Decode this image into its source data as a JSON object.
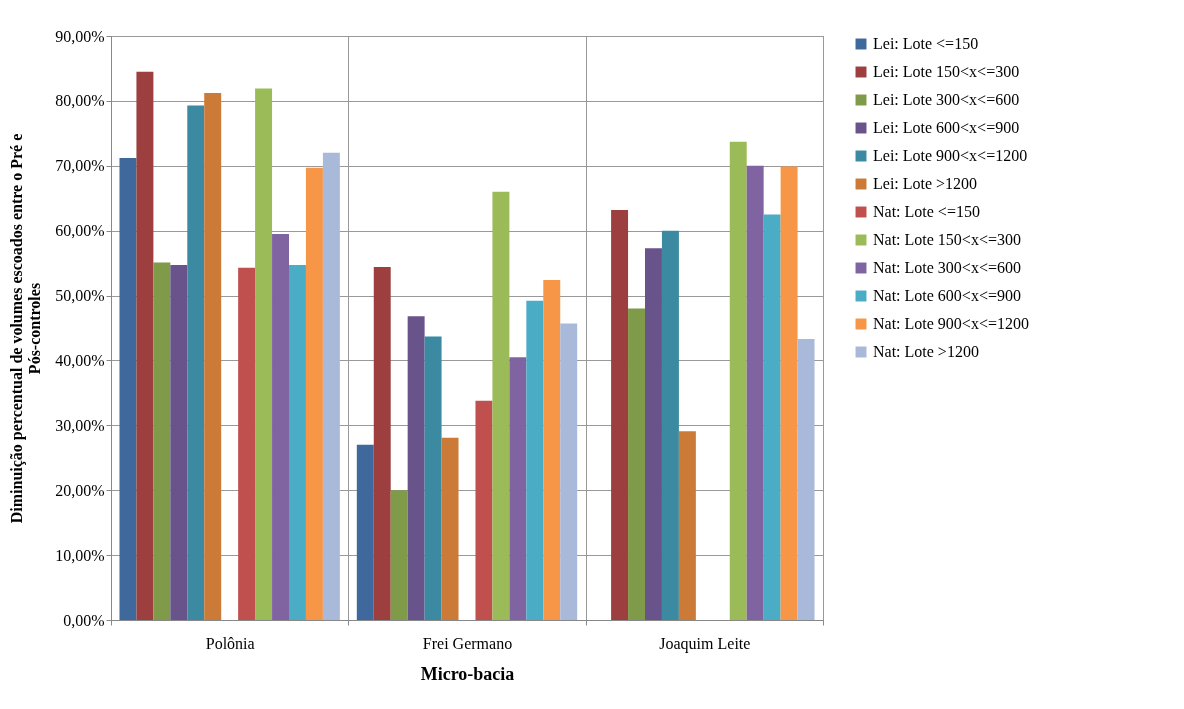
{
  "chart_data": {
    "type": "bar",
    "xlabel": "Micro-bacia",
    "ylabel": "Diminuição percentual de volumes escoados entre o Pré e Pós-controles",
    "categories": [
      "Polônia",
      "Frei Germano",
      "Joaquim Leite"
    ],
    "series": [
      {
        "name": "Lei: Lote <=150",
        "color": "#3f689c",
        "values": [
          71.2,
          27,
          null
        ]
      },
      {
        "name": "Lei: Lote 150<x<=300",
        "color": "#9c3f3e",
        "values": [
          84.5,
          54.4,
          63.2
        ]
      },
      {
        "name": "Lei: Lote 300<x<=600",
        "color": "#7f9a48",
        "values": [
          55.1,
          20,
          48
        ]
      },
      {
        "name": "Lei: Lote 600<x<=900",
        "color": "#68538a",
        "values": [
          54.7,
          46.8,
          57.3
        ]
      },
      {
        "name": "Lei: Lote 900<x<=1200",
        "color": "#3b8aa1",
        "values": [
          79.3,
          43.7,
          60
        ]
      },
      {
        "name": "Lei: Lote >1200",
        "color": "#cc7a37",
        "values": [
          81.2,
          28.1,
          29.1
        ]
      },
      {
        "name": "Nat: Lote <=150",
        "color": "#c0504d",
        "values": [
          54.3,
          33.8,
          null
        ]
      },
      {
        "name": "Nat: Lote 150<x<=300",
        "color": "#9bbb59",
        "values": [
          81.9,
          66,
          73.7
        ]
      },
      {
        "name": "Nat: Lote 300<x<=600",
        "color": "#8064a2",
        "values": [
          59.5,
          40.5,
          70
        ]
      },
      {
        "name": "Nat: Lote 600<x<=900",
        "color": "#4bacc6",
        "values": [
          54.7,
          49.2,
          62.5
        ]
      },
      {
        "name": "Nat: Lote 900<x<=1200",
        "color": "#f79646",
        "values": [
          69.7,
          52.4,
          69.9
        ]
      },
      {
        "name": "Nat: Lote >1200",
        "color": "#a9b9d9",
        "values": [
          72,
          45.7,
          43.3
        ]
      }
    ],
    "ylim": [
      0,
      90
    ],
    "yticks": [
      {
        "value": 0,
        "label": "0,00%"
      },
      {
        "value": 10,
        "label": "10,00%"
      },
      {
        "value": 20,
        "label": "20,00%"
      },
      {
        "value": 30,
        "label": "30,00%"
      },
      {
        "value": 40,
        "label": "40,00%"
      },
      {
        "value": 50,
        "label": "50,00%"
      },
      {
        "value": 60,
        "label": "60,00%"
      },
      {
        "value": 70,
        "label": "70,00%"
      },
      {
        "value": 80,
        "label": "80,00%"
      },
      {
        "value": 90,
        "label": "90,00%"
      }
    ],
    "grid": true,
    "legend": "right"
  }
}
